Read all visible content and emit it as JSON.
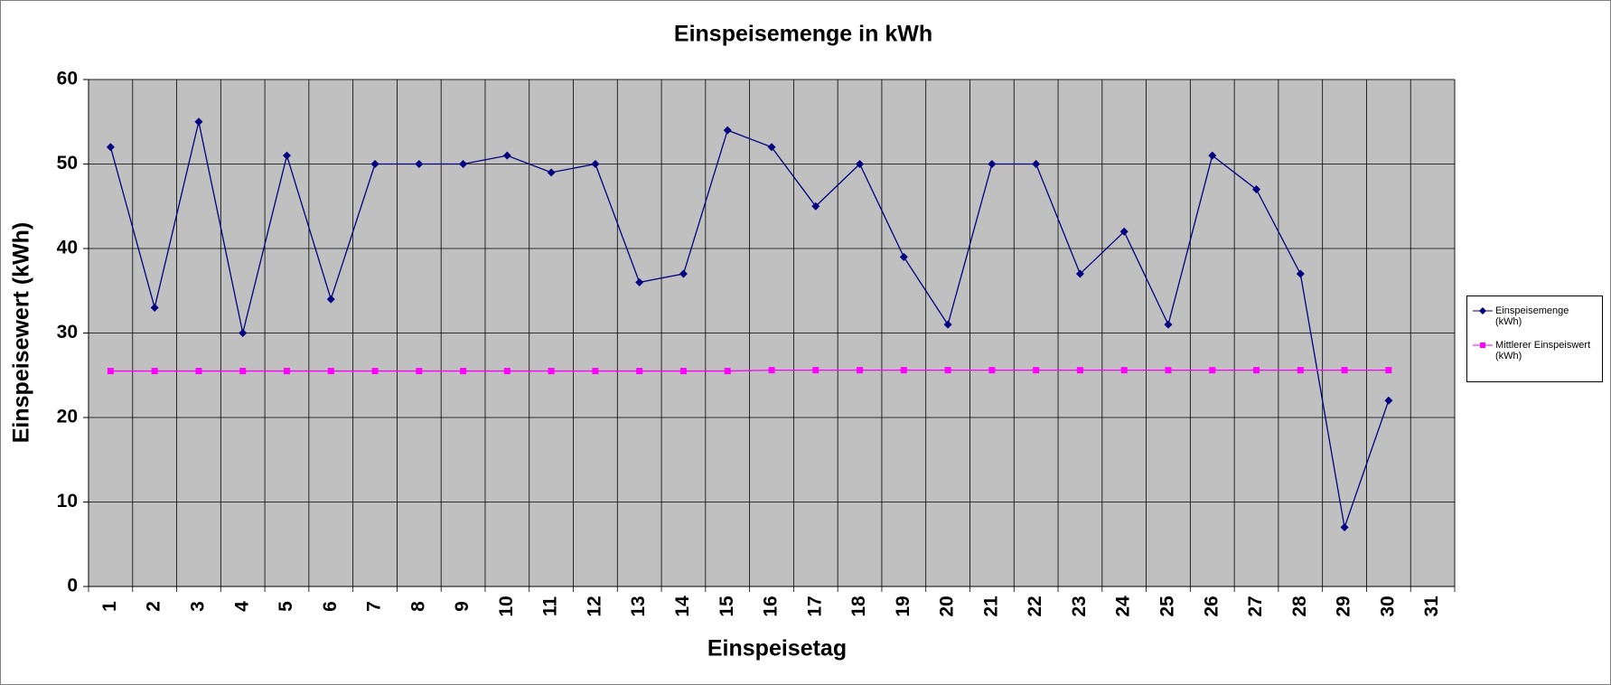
{
  "chart_data": {
    "type": "line",
    "title": "Einspeisemenge in kWh",
    "xlabel": "Einspeisetag",
    "ylabel": "Einspeisewert  (kWh)",
    "categories": [
      "1",
      "2",
      "3",
      "4",
      "5",
      "6",
      "7",
      "8",
      "9",
      "10",
      "11",
      "12",
      "13",
      "14",
      "15",
      "16",
      "17",
      "18",
      "19",
      "20",
      "21",
      "22",
      "23",
      "24",
      "25",
      "26",
      "27",
      "28",
      "29",
      "30",
      "31"
    ],
    "series": [
      {
        "name": "Einspeisemenge (kWh)",
        "color": "#000080",
        "marker": "diamond",
        "values": [
          52,
          33,
          55,
          30,
          51,
          34,
          50,
          50,
          50,
          51,
          49,
          50,
          36,
          37,
          54,
          52,
          45,
          50,
          39,
          31,
          50,
          50,
          37,
          42,
          31,
          51,
          47,
          37,
          7,
          22,
          null
        ]
      },
      {
        "name": "Mittlerer Einspeiswert (kWh)",
        "color": "#ff00ff",
        "marker": "square",
        "values": [
          25.5,
          25.5,
          25.5,
          25.5,
          25.5,
          25.5,
          25.5,
          25.5,
          25.5,
          25.5,
          25.5,
          25.5,
          25.5,
          25.5,
          25.5,
          25.6,
          25.6,
          25.6,
          25.6,
          25.6,
          25.6,
          25.6,
          25.6,
          25.6,
          25.6,
          25.6,
          25.6,
          25.6,
          25.6,
          25.6,
          null
        ]
      }
    ],
    "ylim": [
      0,
      60
    ],
    "yticks": [
      0,
      10,
      20,
      30,
      40,
      50,
      60
    ],
    "grid": true,
    "plot_background": "#c0c0c0",
    "legend": "right"
  }
}
